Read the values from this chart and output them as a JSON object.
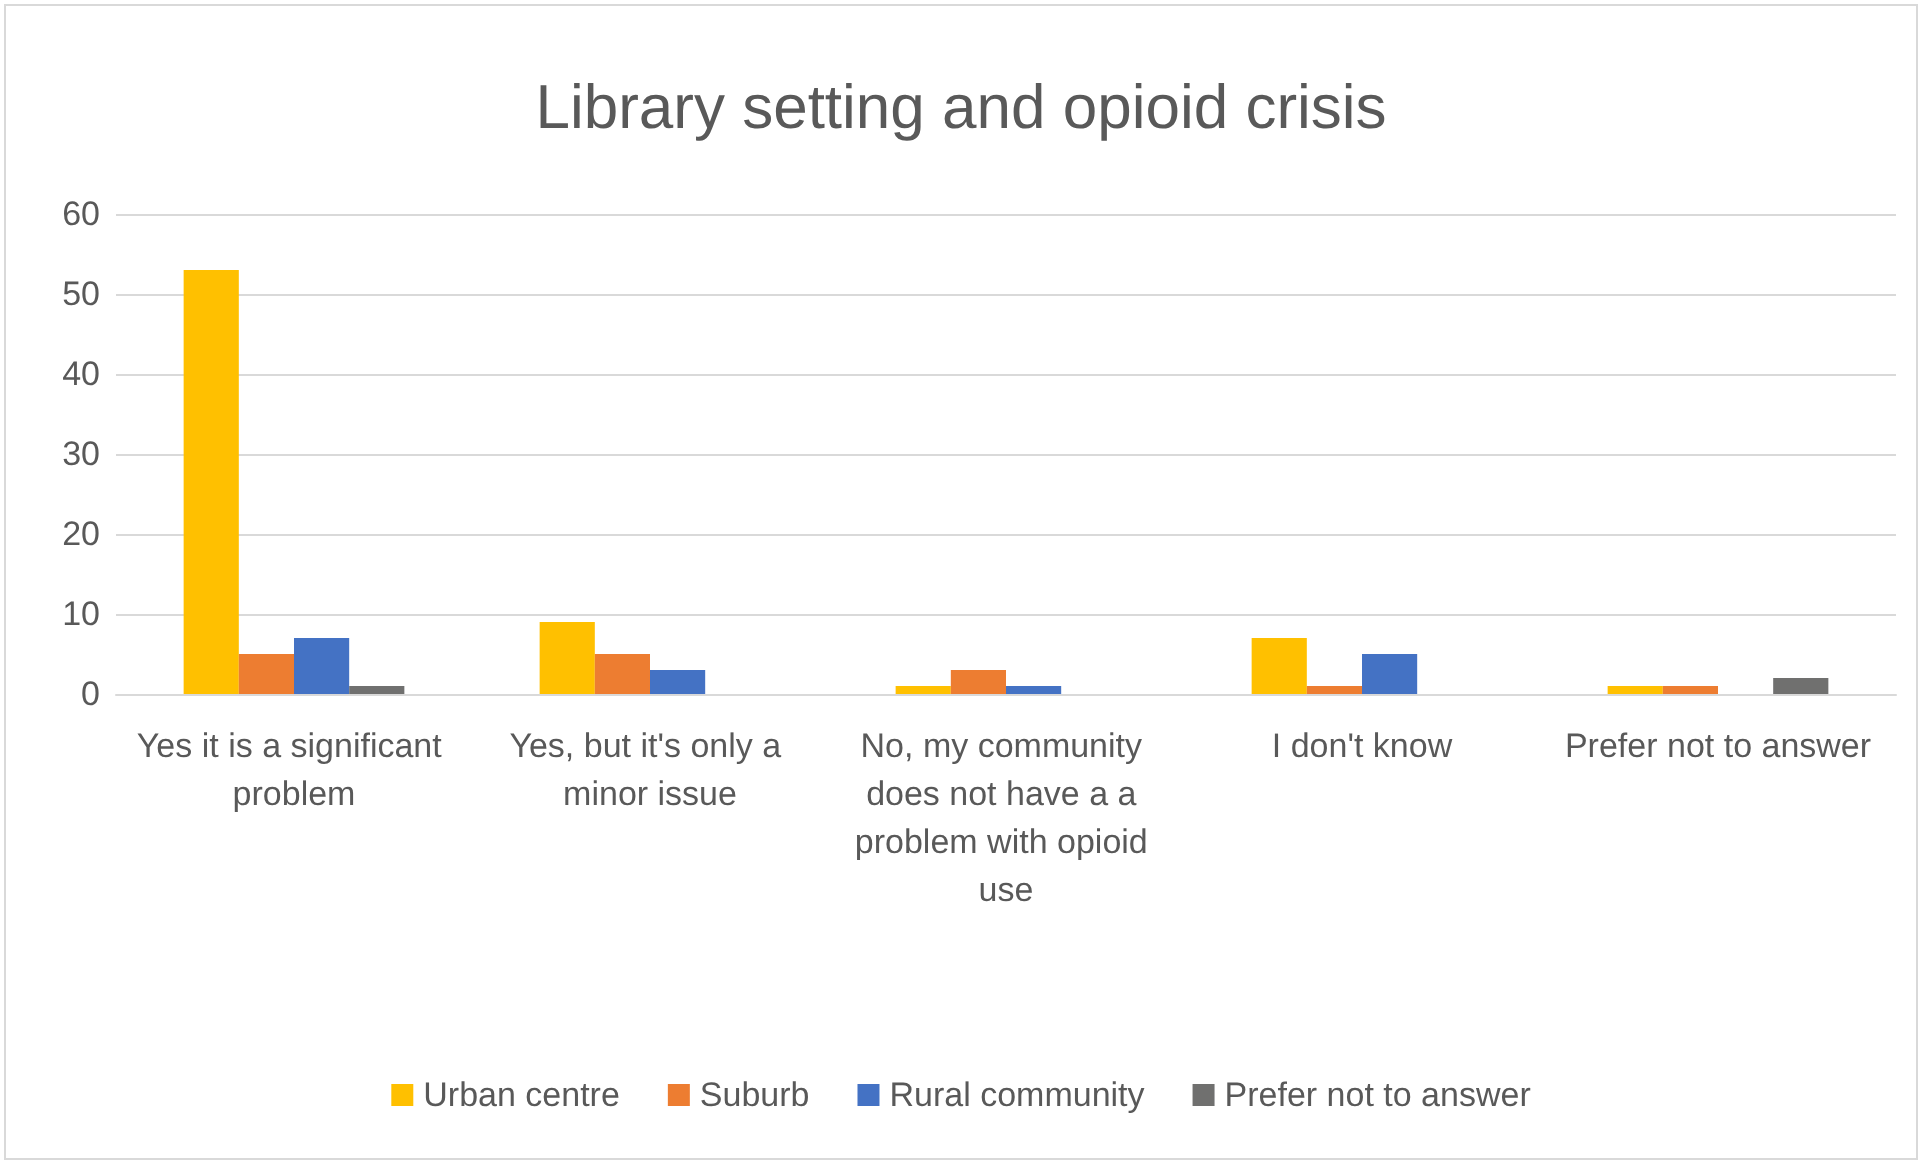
{
  "chart_data": {
    "type": "bar",
    "title": "Library setting and opioid crisis",
    "categories": [
      "Yes it is a significant problem",
      "Yes, but it's only a minor issue",
      "No, my community does not have a a problem with opioid use",
      "I don't know",
      "Prefer not to answer"
    ],
    "series": [
      {
        "name": "Urban centre",
        "color": "#ffc000",
        "values": [
          53,
          9,
          1,
          7,
          1
        ]
      },
      {
        "name": "Suburb",
        "color": "#ed7d31",
        "values": [
          5,
          5,
          3,
          1,
          1
        ]
      },
      {
        "name": "Rural community",
        "color": "#4472c4",
        "values": [
          7,
          3,
          1,
          5,
          0
        ]
      },
      {
        "name": "Prefer not to answer",
        "color": "#70706f",
        "values": [
          1,
          0,
          0,
          0,
          2
        ]
      }
    ],
    "ylim": [
      0,
      60
    ],
    "yticks": [
      0,
      10,
      20,
      30,
      40,
      50,
      60
    ],
    "grid": "y",
    "legend": "bottom"
  }
}
